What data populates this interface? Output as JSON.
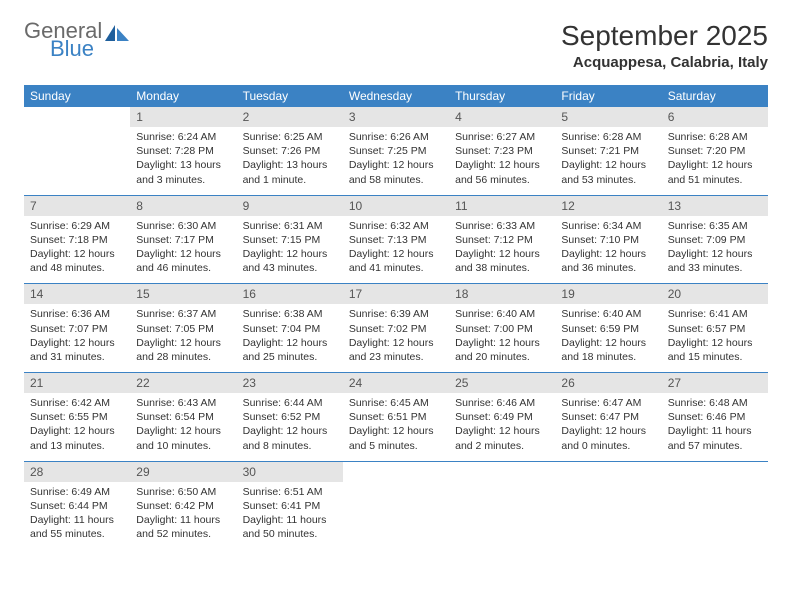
{
  "logo": {
    "line1": "General",
    "line2": "Blue"
  },
  "title": "September 2025",
  "location": "Acquappesa, Calabria, Italy",
  "colors": {
    "header_bg": "#3b82c4",
    "header_text": "#ffffff",
    "daynum_bg": "#e5e5e5",
    "border": "#3b82c4",
    "body_text": "#333333",
    "logo_gray": "#6a6a6a",
    "logo_blue": "#3b82c4"
  },
  "weekdays": [
    "Sunday",
    "Monday",
    "Tuesday",
    "Wednesday",
    "Thursday",
    "Friday",
    "Saturday"
  ],
  "weeks": [
    [
      {
        "n": "",
        "sr": "",
        "ss": "",
        "dl": ""
      },
      {
        "n": "1",
        "sr": "Sunrise: 6:24 AM",
        "ss": "Sunset: 7:28 PM",
        "dl": "Daylight: 13 hours and 3 minutes."
      },
      {
        "n": "2",
        "sr": "Sunrise: 6:25 AM",
        "ss": "Sunset: 7:26 PM",
        "dl": "Daylight: 13 hours and 1 minute."
      },
      {
        "n": "3",
        "sr": "Sunrise: 6:26 AM",
        "ss": "Sunset: 7:25 PM",
        "dl": "Daylight: 12 hours and 58 minutes."
      },
      {
        "n": "4",
        "sr": "Sunrise: 6:27 AM",
        "ss": "Sunset: 7:23 PM",
        "dl": "Daylight: 12 hours and 56 minutes."
      },
      {
        "n": "5",
        "sr": "Sunrise: 6:28 AM",
        "ss": "Sunset: 7:21 PM",
        "dl": "Daylight: 12 hours and 53 minutes."
      },
      {
        "n": "6",
        "sr": "Sunrise: 6:28 AM",
        "ss": "Sunset: 7:20 PM",
        "dl": "Daylight: 12 hours and 51 minutes."
      }
    ],
    [
      {
        "n": "7",
        "sr": "Sunrise: 6:29 AM",
        "ss": "Sunset: 7:18 PM",
        "dl": "Daylight: 12 hours and 48 minutes."
      },
      {
        "n": "8",
        "sr": "Sunrise: 6:30 AM",
        "ss": "Sunset: 7:17 PM",
        "dl": "Daylight: 12 hours and 46 minutes."
      },
      {
        "n": "9",
        "sr": "Sunrise: 6:31 AM",
        "ss": "Sunset: 7:15 PM",
        "dl": "Daylight: 12 hours and 43 minutes."
      },
      {
        "n": "10",
        "sr": "Sunrise: 6:32 AM",
        "ss": "Sunset: 7:13 PM",
        "dl": "Daylight: 12 hours and 41 minutes."
      },
      {
        "n": "11",
        "sr": "Sunrise: 6:33 AM",
        "ss": "Sunset: 7:12 PM",
        "dl": "Daylight: 12 hours and 38 minutes."
      },
      {
        "n": "12",
        "sr": "Sunrise: 6:34 AM",
        "ss": "Sunset: 7:10 PM",
        "dl": "Daylight: 12 hours and 36 minutes."
      },
      {
        "n": "13",
        "sr": "Sunrise: 6:35 AM",
        "ss": "Sunset: 7:09 PM",
        "dl": "Daylight: 12 hours and 33 minutes."
      }
    ],
    [
      {
        "n": "14",
        "sr": "Sunrise: 6:36 AM",
        "ss": "Sunset: 7:07 PM",
        "dl": "Daylight: 12 hours and 31 minutes."
      },
      {
        "n": "15",
        "sr": "Sunrise: 6:37 AM",
        "ss": "Sunset: 7:05 PM",
        "dl": "Daylight: 12 hours and 28 minutes."
      },
      {
        "n": "16",
        "sr": "Sunrise: 6:38 AM",
        "ss": "Sunset: 7:04 PM",
        "dl": "Daylight: 12 hours and 25 minutes."
      },
      {
        "n": "17",
        "sr": "Sunrise: 6:39 AM",
        "ss": "Sunset: 7:02 PM",
        "dl": "Daylight: 12 hours and 23 minutes."
      },
      {
        "n": "18",
        "sr": "Sunrise: 6:40 AM",
        "ss": "Sunset: 7:00 PM",
        "dl": "Daylight: 12 hours and 20 minutes."
      },
      {
        "n": "19",
        "sr": "Sunrise: 6:40 AM",
        "ss": "Sunset: 6:59 PM",
        "dl": "Daylight: 12 hours and 18 minutes."
      },
      {
        "n": "20",
        "sr": "Sunrise: 6:41 AM",
        "ss": "Sunset: 6:57 PM",
        "dl": "Daylight: 12 hours and 15 minutes."
      }
    ],
    [
      {
        "n": "21",
        "sr": "Sunrise: 6:42 AM",
        "ss": "Sunset: 6:55 PM",
        "dl": "Daylight: 12 hours and 13 minutes."
      },
      {
        "n": "22",
        "sr": "Sunrise: 6:43 AM",
        "ss": "Sunset: 6:54 PM",
        "dl": "Daylight: 12 hours and 10 minutes."
      },
      {
        "n": "23",
        "sr": "Sunrise: 6:44 AM",
        "ss": "Sunset: 6:52 PM",
        "dl": "Daylight: 12 hours and 8 minutes."
      },
      {
        "n": "24",
        "sr": "Sunrise: 6:45 AM",
        "ss": "Sunset: 6:51 PM",
        "dl": "Daylight: 12 hours and 5 minutes."
      },
      {
        "n": "25",
        "sr": "Sunrise: 6:46 AM",
        "ss": "Sunset: 6:49 PM",
        "dl": "Daylight: 12 hours and 2 minutes."
      },
      {
        "n": "26",
        "sr": "Sunrise: 6:47 AM",
        "ss": "Sunset: 6:47 PM",
        "dl": "Daylight: 12 hours and 0 minutes."
      },
      {
        "n": "27",
        "sr": "Sunrise: 6:48 AM",
        "ss": "Sunset: 6:46 PM",
        "dl": "Daylight: 11 hours and 57 minutes."
      }
    ],
    [
      {
        "n": "28",
        "sr": "Sunrise: 6:49 AM",
        "ss": "Sunset: 6:44 PM",
        "dl": "Daylight: 11 hours and 55 minutes."
      },
      {
        "n": "29",
        "sr": "Sunrise: 6:50 AM",
        "ss": "Sunset: 6:42 PM",
        "dl": "Daylight: 11 hours and 52 minutes."
      },
      {
        "n": "30",
        "sr": "Sunrise: 6:51 AM",
        "ss": "Sunset: 6:41 PM",
        "dl": "Daylight: 11 hours and 50 minutes."
      },
      {
        "n": "",
        "sr": "",
        "ss": "",
        "dl": ""
      },
      {
        "n": "",
        "sr": "",
        "ss": "",
        "dl": ""
      },
      {
        "n": "",
        "sr": "",
        "ss": "",
        "dl": ""
      },
      {
        "n": "",
        "sr": "",
        "ss": "",
        "dl": ""
      }
    ]
  ]
}
